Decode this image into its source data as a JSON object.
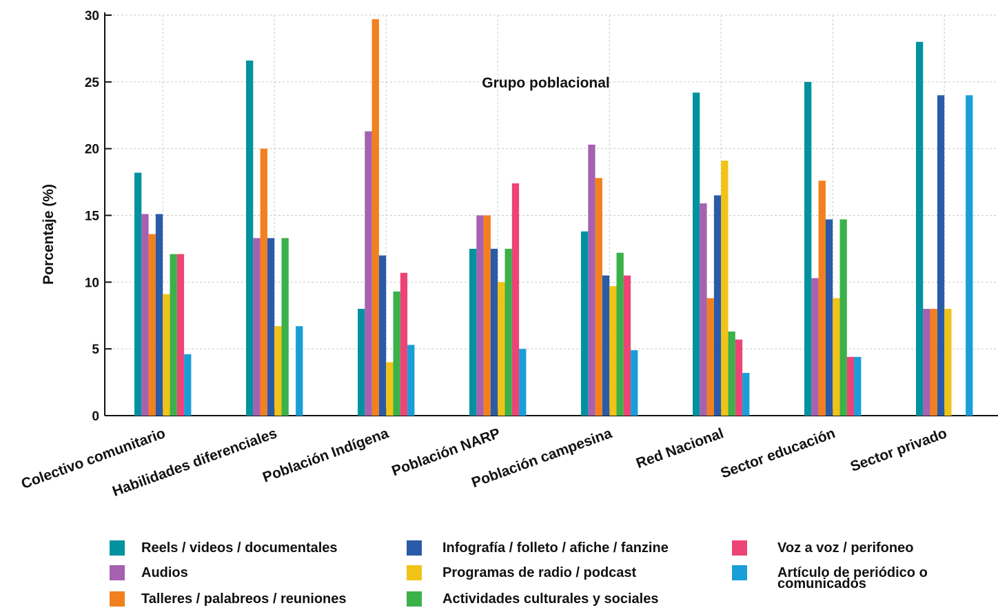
{
  "chart_data": {
    "type": "bar",
    "title": "Grupo poblacional",
    "ylabel": "Porcentaje (%)",
    "xlabel": "",
    "ylim": [
      0,
      30
    ],
    "yticks": [
      "0",
      "5",
      "10",
      "15",
      "20",
      "25",
      "30"
    ],
    "grid": true,
    "legend_position": "bottom",
    "categories": [
      "Colectivo comunitario",
      "Habilidades diferenciales",
      "Población Indígena",
      "Población NARP",
      "Población campesina",
      "Red Nacional",
      "Sector educación",
      "Sector privado"
    ],
    "series": [
      {
        "name": "Reels / videos / documentales",
        "color": "#00929f",
        "values": [
          18.2,
          26.6,
          8.0,
          12.5,
          13.8,
          24.2,
          25.0,
          28.0
        ]
      },
      {
        "name": "Audios",
        "color": "#a661b0",
        "values": [
          15.1,
          13.3,
          21.3,
          15.0,
          20.3,
          15.9,
          10.3,
          8.0
        ]
      },
      {
        "name": "Talleres / palabreos / reuniones",
        "color": "#f2801f",
        "values": [
          13.6,
          20.0,
          29.7,
          15.0,
          17.8,
          8.8,
          17.6,
          8.0
        ]
      },
      {
        "name": "Infografía / folleto / afiche / fanzine",
        "color": "#2a5ba8",
        "values": [
          15.1,
          13.3,
          12.0,
          12.5,
          10.5,
          16.5,
          14.7,
          24.0
        ]
      },
      {
        "name": "Programas de radio / podcast",
        "color": "#f1c318",
        "values": [
          9.1,
          6.7,
          4.0,
          10.0,
          9.7,
          19.1,
          8.8,
          8.0
        ]
      },
      {
        "name": "Actividades culturales y sociales",
        "color": "#3bb14a",
        "values": [
          12.1,
          13.3,
          9.3,
          12.5,
          12.2,
          6.3,
          14.7,
          0
        ]
      },
      {
        "name": "Voz a voz / perifoneo",
        "color": "#ec4476",
        "values": [
          12.1,
          0,
          10.7,
          17.4,
          10.5,
          5.7,
          4.4,
          0
        ]
      },
      {
        "name": "Artículo de periódico o comunicados",
        "color": "#1a9ed8",
        "values": [
          4.6,
          6.7,
          5.3,
          5.0,
          4.9,
          3.2,
          4.4,
          24.0
        ]
      }
    ]
  }
}
